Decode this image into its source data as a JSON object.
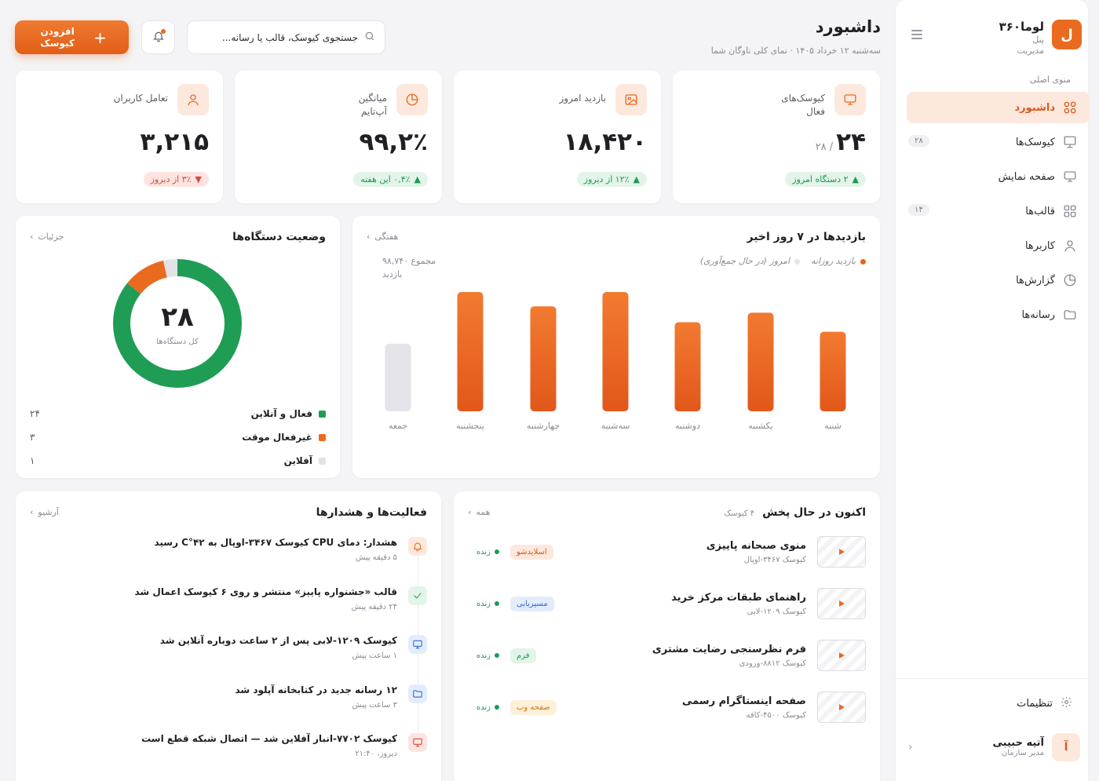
{
  "brand": {
    "logo_letter": "ل",
    "name": "لوما۳۶۰",
    "subtitle": "پنل مدیریت"
  },
  "sidebar": {
    "menu_title": "منوی اصلی",
    "items": [
      {
        "label": "داشبورد",
        "icon": "grid-icon",
        "active": true,
        "badge": ""
      },
      {
        "label": "کیوسک‌ها",
        "icon": "kiosk-icon",
        "active": false,
        "badge": "۲۸"
      },
      {
        "label": "صفحه نمایش",
        "icon": "monitor-icon",
        "active": false,
        "badge": ""
      },
      {
        "label": "قالب‌ها",
        "icon": "template-grid-icon",
        "active": false,
        "badge": "۱۴"
      },
      {
        "label": "کاربرها",
        "icon": "user-icon",
        "active": false,
        "badge": ""
      },
      {
        "label": "گزارش‌ها",
        "icon": "pie-chart-icon",
        "active": false,
        "badge": ""
      },
      {
        "label": "رسانه‌ها",
        "icon": "folder-icon",
        "active": false,
        "badge": ""
      }
    ],
    "settings_label": "تنظیمات",
    "profile": {
      "initial": "آ",
      "name": "آتیه حبیبی",
      "role": "مدیر سازمان"
    }
  },
  "header": {
    "title": "داشبورد",
    "subtitle": "سه‌شنبه ۱۲ خرداد ۱۴۰۵ · نمای کلی ناوگان شما",
    "search_placeholder": "جستجوی کیوسک، قالب یا رسانه...",
    "add_button": "افزودن کیوسک"
  },
  "stats": [
    {
      "label": "کیوسک‌های فعال",
      "value": "۲۴",
      "of": "/ ۲۸",
      "chip": "۲ دستگاه امروز",
      "trend": "up",
      "icon": "monitor-icon"
    },
    {
      "label": "بازدید امروز",
      "value": "۱۸,۴۲۰",
      "of": "",
      "chip": "۱۲٪ از دیروز",
      "trend": "up",
      "icon": "image-icon"
    },
    {
      "label": "میانگین آپ‌تایم",
      "value": "۹۹,۲٪",
      "of": "",
      "chip": "۰,۴٪ این هفته",
      "trend": "up",
      "icon": "pie-chart-icon"
    },
    {
      "label": "تعامل کاربران",
      "value": "۳,۲۱۵",
      "of": "",
      "chip": "۳٪ از دیروز",
      "trend": "down",
      "icon": "user-icon"
    }
  ],
  "visits": {
    "title": "بازدیدها در ۷ روز اخیر",
    "link": "هفتگی",
    "legend_daily": "بازدید روزانه",
    "legend_today": "امروز (در حال جمع‌آوری)",
    "total": "مجموع ۹۸,۷۴۰ بازدید"
  },
  "chart_data": {
    "type": "bar",
    "categories": [
      "شنبه",
      "یکشنبه",
      "دوشنبه",
      "سه‌شنبه",
      "چهارشنبه",
      "پنجشنبه",
      "جمعه"
    ],
    "values": [
      100,
      124,
      112,
      150,
      132,
      150,
      85
    ],
    "today_index": 6,
    "colors": {
      "daily": "#e8621b",
      "today": "#e4e4ea"
    }
  },
  "devices": {
    "title": "وضعیت دستگاه‌ها",
    "link": "جزئیات",
    "total": "۲۸",
    "total_label": "کل دستگاه‌ها",
    "statuses": [
      {
        "label": "فعال و آنلاین",
        "count": "۲۴",
        "value": 24,
        "color": "#1f9d55"
      },
      {
        "label": "غیرفعال موقت",
        "count": "۳",
        "value": 3,
        "color": "#ea6a1f"
      },
      {
        "label": "آفلاین",
        "count": "۱",
        "value": 1,
        "color": "#e2e2e7"
      }
    ]
  },
  "now_playing": {
    "title": "اکنون در حال پخش",
    "count": "۴ کیوسک",
    "link": "همه",
    "items": [
      {
        "name": "منوی صبحانه پاییزی",
        "kiosk": "کیوسک ۳۴۶۷-اوپال",
        "tag": "اسلایدشو",
        "live": "زنده",
        "tag_bg": "#fde8dd",
        "tag_fg": "#d9581a"
      },
      {
        "name": "راهنمای طبقات مرکز خرید",
        "kiosk": "کیوسک ۱۲۰۹-لابی",
        "tag": "مسیریابی",
        "live": "زنده",
        "tag_bg": "#e3ecfb",
        "tag_fg": "#2f6ad0"
      },
      {
        "name": "فرم نظرسنجی رضایت مشتری",
        "kiosk": "کیوسک ۸۸۱۲-ورودی",
        "tag": "فرم",
        "live": "زنده",
        "tag_bg": "#e3f4e9",
        "tag_fg": "#1e9a55"
      },
      {
        "name": "صفحه اینستاگرام رسمی",
        "kiosk": "کیوسک ۴۵۰۰-کافه",
        "tag": "صفحه وب",
        "live": "زنده",
        "tag_bg": "#fdf0d9",
        "tag_fg": "#c77a12"
      }
    ]
  },
  "activity": {
    "title": "فعالیت‌ها و هشدارها",
    "link": "آرشیو",
    "items": [
      {
        "msg": "هشدار: دمای CPU کیوسک ۳۴۶۷-اوپال به ۴۲°C رسید",
        "time": "۵ دقیقه پیش",
        "icon": "bell-icon",
        "bg": "#fde8dd",
        "fg": "#ea6a1f"
      },
      {
        "msg": "قالب «جشنواره پاییز» منتشر و روی ۶ کیوسک اعمال شد",
        "time": "۲۴ دقیقه پیش",
        "icon": "check-icon",
        "bg": "#e3f4e9",
        "fg": "#1e9a55"
      },
      {
        "msg": "کیوسک ۱۲۰۹-لابی پس از ۲ ساعت دوباره آنلاین شد",
        "time": "۱ ساعت پیش",
        "icon": "monitor-icon",
        "bg": "#e3ecfb",
        "fg": "#2f6ad0"
      },
      {
        "msg": "۱۲ رسانه جدید در کتابخانه آپلود شد",
        "time": "۳ ساعت پیش",
        "icon": "folder-icon",
        "bg": "#e3ecfb",
        "fg": "#2f6ad0"
      },
      {
        "msg": "کیوسک ۷۷۰۲-انبار آفلاین شد — اتصال شبکه قطع است",
        "time": "دیروز، ۲۱:۴۰",
        "icon": "monitor-icon",
        "bg": "#fde4e1",
        "fg": "#d44a3a"
      }
    ]
  }
}
